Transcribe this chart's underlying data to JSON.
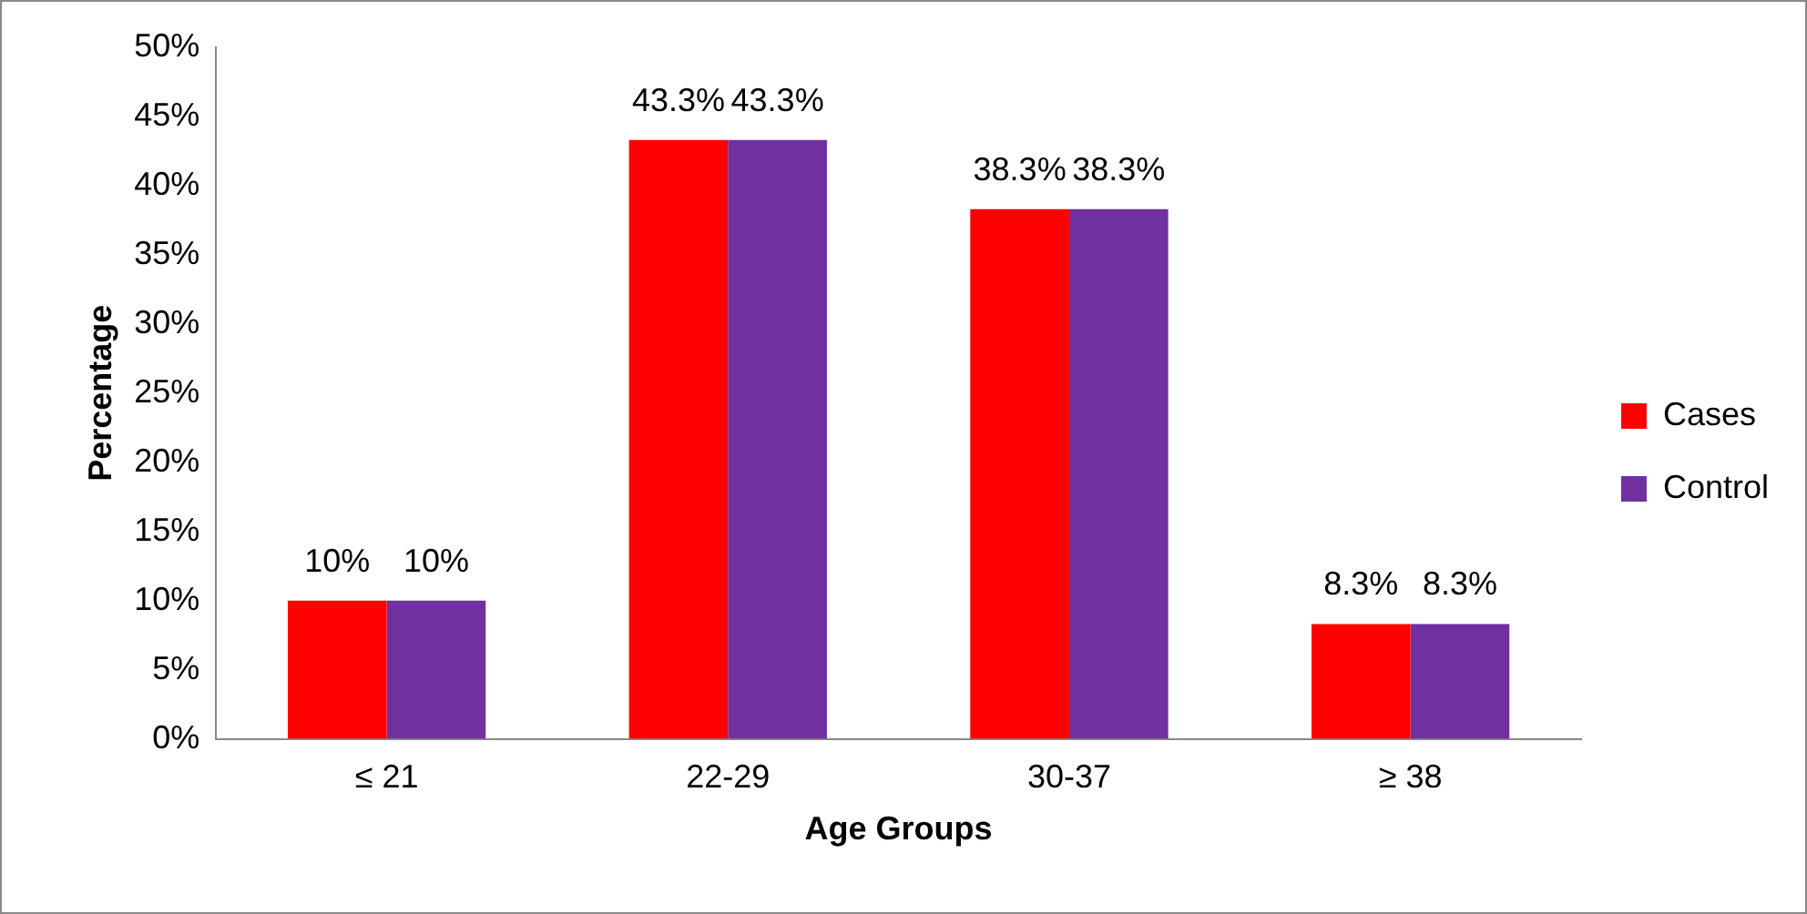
{
  "chart_data": {
    "type": "bar",
    "xlabel": "Age Groups",
    "ylabel": "Percentage",
    "categories": [
      "≤ 21",
      "22-29",
      "30-37",
      "≥ 38"
    ],
    "series": [
      {
        "name": "Cases",
        "color": "#ff0000",
        "values": [
          10,
          43.3,
          38.3,
          8.3
        ],
        "value_labels": [
          "10%",
          "43.3%",
          "38.3%",
          "8.3%"
        ]
      },
      {
        "name": "Control",
        "color": "#7030a0",
        "values": [
          10,
          43.3,
          38.3,
          8.3
        ],
        "value_labels": [
          "10%",
          "43.3%",
          "38.3%",
          "8.3%"
        ]
      }
    ],
    "ylim": [
      0,
      50
    ],
    "yticks": [
      {
        "value": 0,
        "label": "0%"
      },
      {
        "value": 5,
        "label": "5%"
      },
      {
        "value": 10,
        "label": "10%"
      },
      {
        "value": 15,
        "label": "15%"
      },
      {
        "value": 20,
        "label": "20%"
      },
      {
        "value": 25,
        "label": "25%"
      },
      {
        "value": 30,
        "label": "30%"
      },
      {
        "value": 35,
        "label": "35%"
      },
      {
        "value": 40,
        "label": "40%"
      },
      {
        "value": 45,
        "label": "45%"
      },
      {
        "value": 50,
        "label": "50%"
      }
    ],
    "grid": false,
    "legend": "right"
  }
}
